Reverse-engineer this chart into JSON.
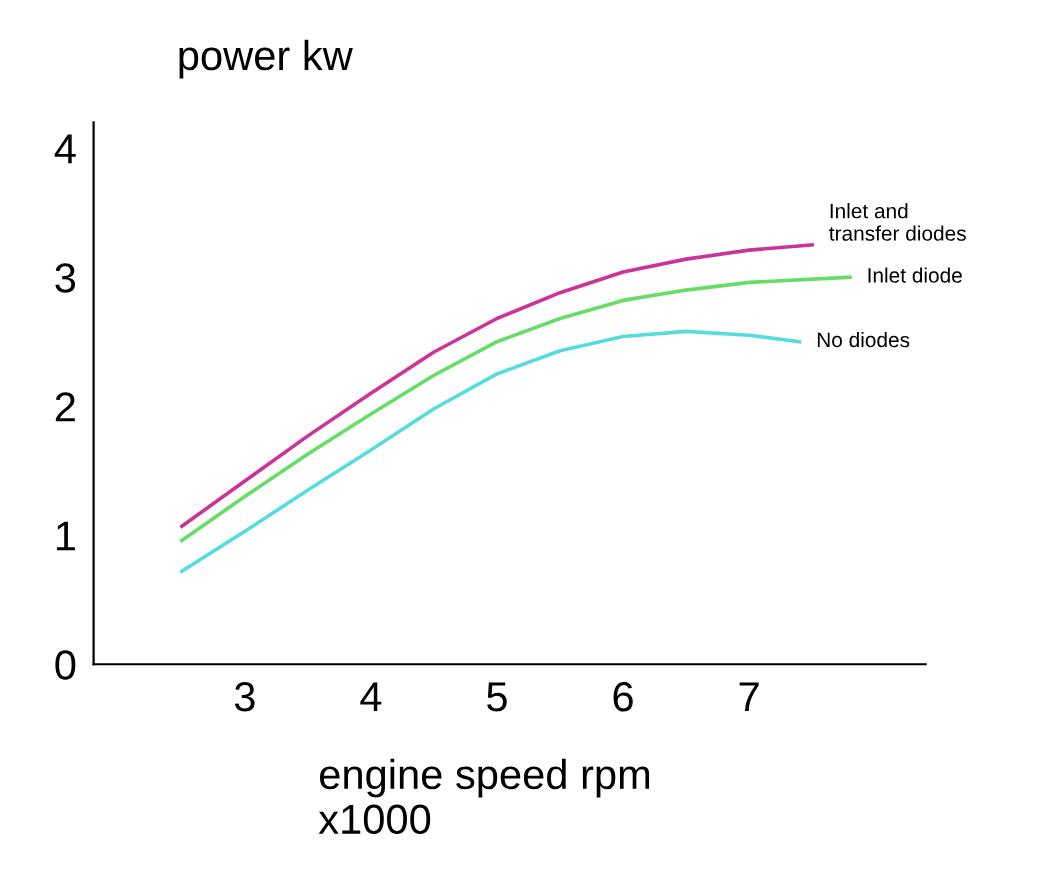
{
  "chart_data": {
    "type": "line",
    "title": "power kw",
    "xlabel": "engine speed rpm\nx1000",
    "xlim": [
      1.8,
      8.4
    ],
    "ylim": [
      0,
      4.2
    ],
    "xticks": [
      3,
      4,
      5,
      6,
      7
    ],
    "yticks": [
      0,
      1,
      2,
      3,
      4
    ],
    "grid": false,
    "legend": false,
    "marker": "none",
    "line_style": "solid",
    "series": [
      {
        "name": "Inlet and\ntransfer diodes",
        "color": "#cc3399",
        "x": [
          2.5,
          3,
          3.5,
          4,
          4.5,
          5,
          5.5,
          6,
          6.5,
          7,
          7.5
        ],
        "values": [
          1.07,
          1.42,
          1.77,
          2.1,
          2.42,
          2.68,
          2.88,
          3.04,
          3.14,
          3.21,
          3.25
        ]
      },
      {
        "name": "Inlet diode",
        "color": "#66dd66",
        "x": [
          2.5,
          3,
          3.5,
          4,
          4.5,
          5,
          5.5,
          6,
          6.5,
          7,
          7.8
        ],
        "values": [
          0.96,
          1.3,
          1.63,
          1.94,
          2.24,
          2.5,
          2.68,
          2.82,
          2.9,
          2.96,
          3.0
        ]
      },
      {
        "name": "No diodes",
        "color": "#55dddd",
        "x": [
          2.5,
          3,
          3.5,
          4,
          4.5,
          5,
          5.5,
          6,
          6.5,
          7,
          7.4
        ],
        "values": [
          0.72,
          1.03,
          1.35,
          1.66,
          1.98,
          2.25,
          2.43,
          2.54,
          2.58,
          2.55,
          2.5
        ]
      }
    ]
  }
}
